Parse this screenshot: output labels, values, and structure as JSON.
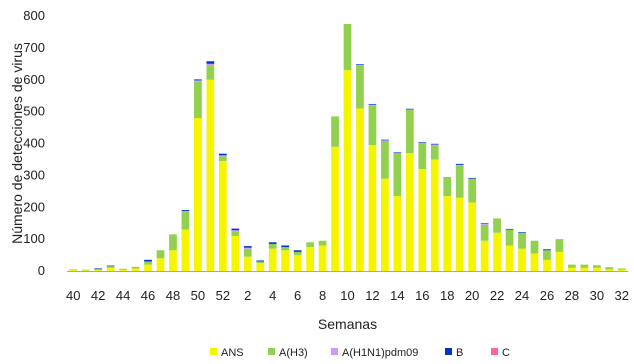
{
  "chart_data": {
    "type": "bar",
    "stacked": true,
    "title": "",
    "xlabel": "Semanas",
    "ylabel": "Número de detecciones de virus",
    "ylim": [
      0,
      800
    ],
    "yticks": [
      0,
      100,
      200,
      300,
      400,
      500,
      600,
      700,
      800
    ],
    "grid": false,
    "legend_position": "bottom",
    "categories": [
      "40",
      "41",
      "42",
      "43",
      "44",
      "45",
      "46",
      "47",
      "48",
      "49",
      "50",
      "51",
      "52",
      "1",
      "2",
      "3",
      "4",
      "5",
      "6",
      "7",
      "8",
      "9",
      "10",
      "11",
      "12",
      "13",
      "14",
      "15",
      "16",
      "17",
      "18",
      "19",
      "20",
      "21",
      "22",
      "23",
      "24",
      "25",
      "26",
      "27",
      "28",
      "29",
      "30",
      "31",
      "32"
    ],
    "xtick_labels": [
      "40",
      "42",
      "44",
      "46",
      "48",
      "50",
      "52",
      "2",
      "4",
      "6",
      "8",
      "10",
      "12",
      "14",
      "16",
      "18",
      "20",
      "22",
      "24",
      "26",
      "28",
      "30",
      "32"
    ],
    "series": [
      {
        "name": "ANS",
        "color": "#f5f500",
        "values": [
          3,
          2,
          3,
          10,
          4,
          8,
          20,
          40,
          65,
          130,
          480,
          600,
          345,
          110,
          45,
          25,
          70,
          65,
          50,
          75,
          80,
          390,
          630,
          510,
          395,
          290,
          235,
          370,
          320,
          350,
          235,
          230,
          215,
          95,
          120,
          80,
          70,
          55,
          35,
          60,
          10,
          10,
          10,
          5,
          4
        ]
      },
      {
        "name": "A(H3)",
        "color": "#92d050",
        "values": [
          2,
          2,
          3,
          5,
          3,
          5,
          10,
          25,
          50,
          55,
          115,
          45,
          15,
          15,
          25,
          5,
          15,
          10,
          10,
          15,
          15,
          95,
          145,
          135,
          125,
          118,
          135,
          135,
          80,
          45,
          60,
          100,
          75,
          50,
          45,
          50,
          50,
          40,
          30,
          40,
          10,
          10,
          8,
          7,
          4
        ]
      },
      {
        "name": "A(H1N1)pdm09",
        "color": "#cc99ff",
        "values": [
          0,
          0,
          0,
          0,
          0,
          0,
          0,
          0,
          0,
          3,
          3,
          5,
          3,
          3,
          3,
          0,
          0,
          0,
          0,
          0,
          0,
          0,
          0,
          2,
          2,
          2,
          0,
          2,
          2,
          2,
          0,
          3,
          0,
          3,
          0,
          0,
          0,
          0,
          0,
          0,
          0,
          0,
          0,
          0,
          0
        ]
      },
      {
        "name": "B",
        "color": "#0033cc",
        "values": [
          0,
          0,
          2,
          2,
          0,
          0,
          5,
          0,
          0,
          3,
          3,
          8,
          5,
          5,
          5,
          3,
          5,
          5,
          5,
          0,
          0,
          0,
          0,
          2,
          2,
          2,
          2,
          2,
          2,
          2,
          0,
          3,
          2,
          2,
          0,
          2,
          2,
          0,
          3,
          0,
          0,
          0,
          0,
          0,
          0
        ]
      },
      {
        "name": "C",
        "color": "#ff6699",
        "values": [
          0,
          0,
          0,
          0,
          0,
          0,
          0,
          0,
          0,
          0,
          0,
          0,
          0,
          0,
          0,
          0,
          0,
          0,
          0,
          0,
          0,
          0,
          0,
          0,
          0,
          0,
          0,
          0,
          0,
          0,
          0,
          0,
          0,
          0,
          0,
          0,
          0,
          0,
          0,
          0,
          0,
          0,
          0,
          0,
          0
        ]
      }
    ]
  }
}
